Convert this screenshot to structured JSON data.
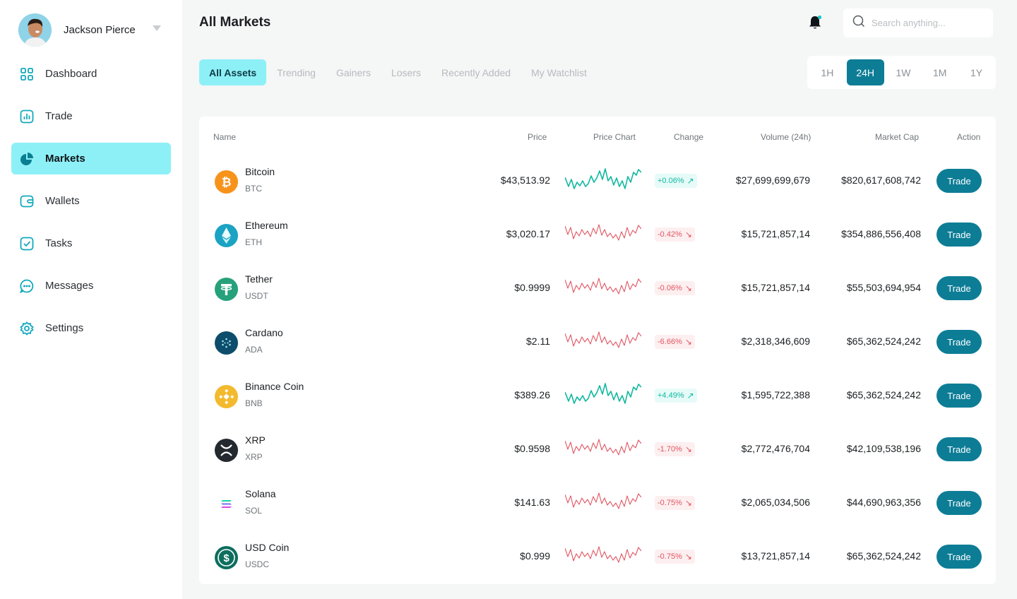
{
  "profile": {
    "name": "Jackson Pierce"
  },
  "sidebar": {
    "items": [
      {
        "label": "Dashboard",
        "icon": "grid-icon"
      },
      {
        "label": "Trade",
        "icon": "chart-bars-icon"
      },
      {
        "label": "Markets",
        "icon": "pie-chart-icon",
        "active": true
      },
      {
        "label": "Wallets",
        "icon": "wallet-icon"
      },
      {
        "label": "Tasks",
        "icon": "checkbox-icon"
      },
      {
        "label": "Messages",
        "icon": "message-icon"
      },
      {
        "label": "Settings",
        "icon": "gear-icon"
      }
    ]
  },
  "header": {
    "title": "All Markets",
    "search_placeholder": "Search anything..."
  },
  "tabs": [
    "All Assets",
    "Trending",
    "Gainers",
    "Losers",
    "Recently Added",
    "My Watchlist"
  ],
  "active_tab": "All Assets",
  "timeframes": [
    "1H",
    "24H",
    "1W",
    "1M",
    "1Y"
  ],
  "active_timeframe": "24H",
  "table": {
    "headers": {
      "name": "Name",
      "price": "Price",
      "chart": "Price Chart",
      "change": "Change",
      "volume": "Volume (24h)",
      "mcap": "Market Cap",
      "action": "Action"
    },
    "trade_label": "Trade",
    "rows": [
      {
        "name": "Bitcoin",
        "symbol": "BTC",
        "price": "$43,513.92",
        "change": "+0.06%",
        "direction": "up",
        "volume": "$27,699,699,679",
        "mcap": "$820,617,608,742",
        "icon_color": "#f7931a"
      },
      {
        "name": "Ethereum",
        "symbol": "ETH",
        "price": "$3,020.17",
        "change": "-0.42%",
        "direction": "down",
        "volume": "$15,721,857,14",
        "mcap": "$354,886,556,408",
        "icon_color": "#1aa3c2"
      },
      {
        "name": "Tether",
        "symbol": "USDT",
        "price": "$0.9999",
        "change": "-0.06%",
        "direction": "down",
        "volume": "$15,721,857,14",
        "mcap": "$55,503,694,954",
        "icon_color": "#26a17b"
      },
      {
        "name": "Cardano",
        "symbol": "ADA",
        "price": "$2.11",
        "change": "-6.66%",
        "direction": "down",
        "volume": "$2,318,346,609",
        "mcap": "$65,362,524,242",
        "icon_color": "#0d4d6b"
      },
      {
        "name": "Binance Coin",
        "symbol": "BNB",
        "price": "$389.26",
        "change": "+4.49%",
        "direction": "up",
        "volume": "$1,595,722,388",
        "mcap": "$65,362,524,242",
        "icon_color": "#f3ba2f"
      },
      {
        "name": "XRP",
        "symbol": "XRP",
        "price": "$0.9598",
        "change": "-1.70%",
        "direction": "down",
        "volume": "$2,772,476,704",
        "mcap": "$42,109,538,196",
        "icon_color": "#23292f"
      },
      {
        "name": "Solana",
        "symbol": "SOL",
        "price": "$141.63",
        "change": "-0.75%",
        "direction": "down",
        "volume": "$2,065,034,506",
        "mcap": "$44,690,963,356",
        "icon_color": "#ffffff"
      },
      {
        "name": "USD Coin",
        "symbol": "USDC",
        "price": "$0.999",
        "change": "-0.75%",
        "direction": "down",
        "volume": "$13,721,857,14",
        "mcap": "$65,362,524,242",
        "icon_color": "#0d6e5e"
      }
    ]
  },
  "colors": {
    "accent": "#0d7d96",
    "active_bg": "#8ef0f7",
    "up": "#11b8a0",
    "down": "#e05561"
  }
}
